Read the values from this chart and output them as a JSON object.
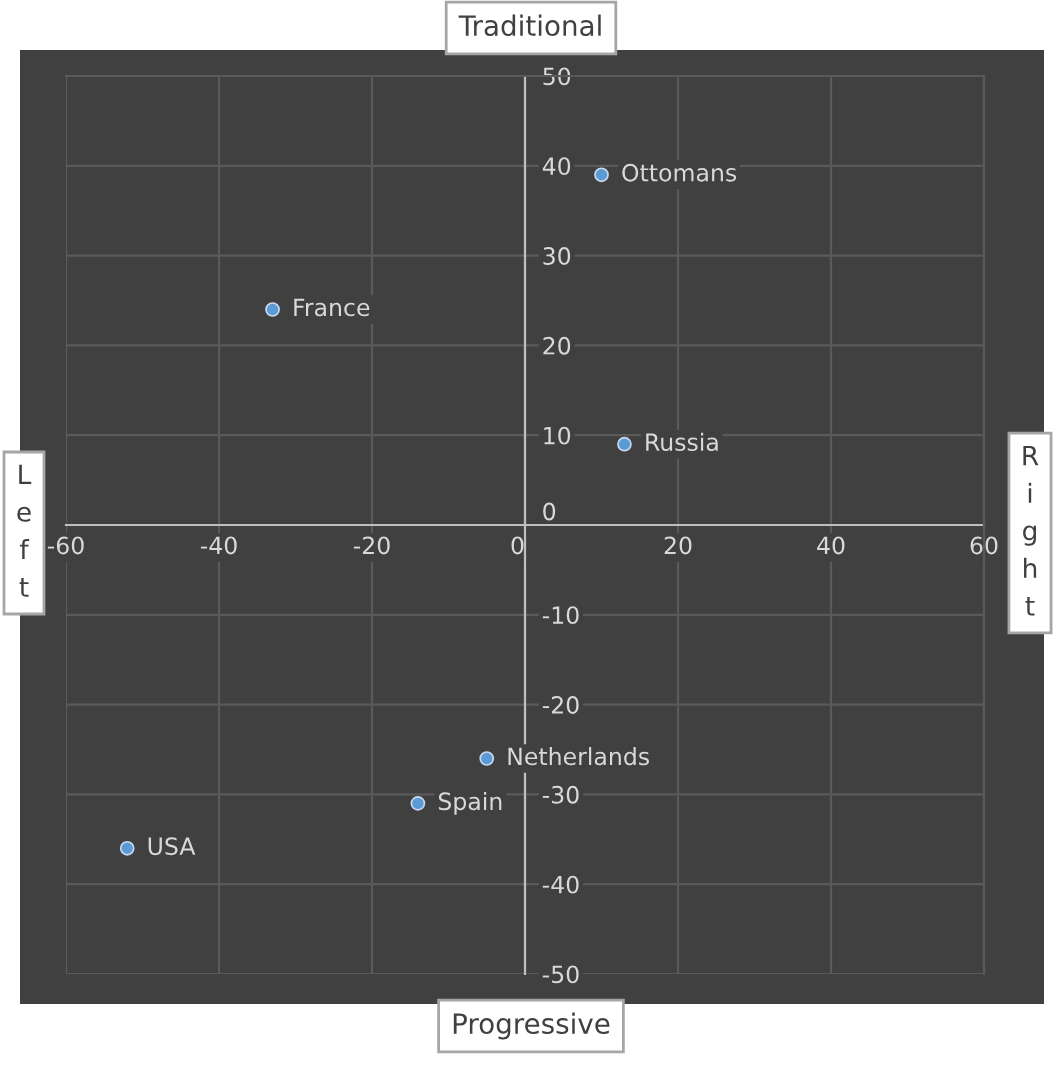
{
  "chart_data": {
    "type": "scatter",
    "x": [
      10,
      -33,
      13,
      -5,
      -14,
      -52
    ],
    "values": [
      39,
      24,
      9,
      -26,
      -31,
      -36
    ],
    "color": "#5b9bd5",
    "marker": "circle",
    "xlim": [
      -60,
      60
    ],
    "xticks": [
      -60,
      -40,
      -20,
      0,
      20,
      40,
      60
    ],
    "ylim": [
      -50,
      50
    ],
    "yticks": [
      -50,
      -40,
      -30,
      -20,
      -10,
      0,
      10,
      20,
      30,
      40,
      50
    ],
    "grid": true,
    "annotations": [
      "Traditional",
      "Progressive",
      "Left",
      "Right",
      {
        "text": "Ottomans",
        "x": 10,
        "y": 39
      },
      {
        "text": "France",
        "x": -33,
        "y": 24
      },
      {
        "text": "Russia",
        "x": 13,
        "y": 9
      },
      {
        "text": "Netherlands",
        "x": -5,
        "y": -26
      },
      {
        "text": "Spain",
        "x": -14,
        "y": -31
      },
      {
        "text": "USA",
        "x": -52,
        "y": -36
      }
    ]
  }
}
